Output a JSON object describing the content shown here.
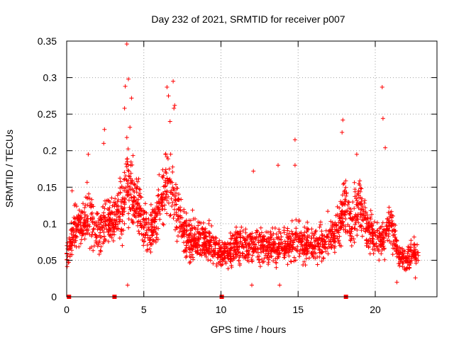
{
  "chart_data": {
    "type": "scatter",
    "title": "Day 232 of 2021, SRMTID for receiver p007",
    "xlabel": "GPS time / hours",
    "ylabel": "SRMTID / TECUs",
    "xlim": [
      0,
      24
    ],
    "ylim": [
      0,
      0.35
    ],
    "grid": true,
    "marker": "plus",
    "x_ticks": [
      0,
      5,
      10,
      15,
      20
    ],
    "x_tick_labels": [
      "0",
      "5",
      "10",
      "15",
      "20"
    ],
    "y_ticks": [
      0,
      0.05,
      0.1,
      0.15,
      0.2,
      0.25,
      0.3,
      0.35
    ],
    "y_tick_labels": [
      "0",
      "0.05",
      "0.1",
      "0.15",
      "0.2",
      "0.25",
      "0.3",
      "0.35"
    ],
    "colors": {
      "series": "#ff0000",
      "grid": "#a0a0a0",
      "axis": "#000000"
    },
    "baseline_markers_x": [
      0.15,
      3.1,
      10.05,
      18.1
    ],
    "profile": {
      "description_hours": [
        0,
        0.5,
        1,
        1.5,
        2,
        2.5,
        3,
        3.5,
        4,
        4.5,
        5,
        5.5,
        6,
        6.5,
        7,
        7.5,
        8,
        8.5,
        9,
        9.5,
        10,
        10.5,
        11,
        11.5,
        12,
        12.5,
        13,
        13.5,
        14,
        14.5,
        15,
        15.5,
        16,
        16.5,
        17,
        17.5,
        18,
        18.5,
        19,
        19.5,
        20,
        20.5,
        21,
        21.5,
        22,
        22.5,
        22.8
      ],
      "mean_srmtid": [
        0.06,
        0.09,
        0.1,
        0.11,
        0.09,
        0.1,
        0.1,
        0.12,
        0.15,
        0.13,
        0.1,
        0.09,
        0.12,
        0.16,
        0.13,
        0.09,
        0.08,
        0.08,
        0.08,
        0.07,
        0.06,
        0.06,
        0.07,
        0.07,
        0.07,
        0.07,
        0.07,
        0.07,
        0.07,
        0.07,
        0.08,
        0.07,
        0.07,
        0.07,
        0.08,
        0.09,
        0.12,
        0.1,
        0.13,
        0.09,
        0.08,
        0.08,
        0.1,
        0.06,
        0.05,
        0.06,
        0.06
      ]
    },
    "outliers": [
      {
        "x": 3.9,
        "y": 0.346
      },
      {
        "x": 4.0,
        "y": 0.298
      },
      {
        "x": 3.8,
        "y": 0.288
      },
      {
        "x": 4.2,
        "y": 0.272
      },
      {
        "x": 3.75,
        "y": 0.258
      },
      {
        "x": 4.1,
        "y": 0.232
      },
      {
        "x": 3.9,
        "y": 0.218
      },
      {
        "x": 6.5,
        "y": 0.287
      },
      {
        "x": 6.6,
        "y": 0.275
      },
      {
        "x": 6.9,
        "y": 0.295
      },
      {
        "x": 7.0,
        "y": 0.262
      },
      {
        "x": 6.95,
        "y": 0.258
      },
      {
        "x": 6.7,
        "y": 0.24
      },
      {
        "x": 2.45,
        "y": 0.229
      },
      {
        "x": 2.4,
        "y": 0.21
      },
      {
        "x": 1.4,
        "y": 0.195
      },
      {
        "x": 14.8,
        "y": 0.215
      },
      {
        "x": 14.8,
        "y": 0.18
      },
      {
        "x": 17.9,
        "y": 0.242
      },
      {
        "x": 17.85,
        "y": 0.225
      },
      {
        "x": 20.45,
        "y": 0.287
      },
      {
        "x": 20.5,
        "y": 0.244
      },
      {
        "x": 20.65,
        "y": 0.204
      },
      {
        "x": 18.8,
        "y": 0.195
      },
      {
        "x": 13.7,
        "y": 0.18
      },
      {
        "x": 12.1,
        "y": 0.172
      },
      {
        "x": 0.35,
        "y": 0.145
      },
      {
        "x": 3.95,
        "y": 0.016
      },
      {
        "x": 13.8,
        "y": 0.016
      },
      {
        "x": 12.0,
        "y": 0.016
      },
      {
        "x": 21.4,
        "y": 0.02
      },
      {
        "x": 22.6,
        "y": 0.026
      }
    ]
  }
}
